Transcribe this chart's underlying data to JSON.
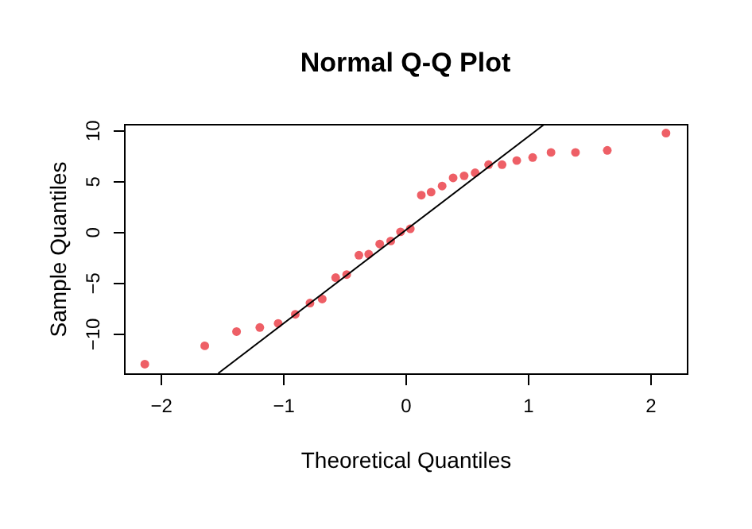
{
  "chart_data": {
    "type": "scatter",
    "title": "Normal Q-Q Plot",
    "xlabel": "Theoretical Quantiles",
    "ylabel": "Sample Quantiles",
    "xlim": [
      -2.3,
      2.3
    ],
    "ylim": [
      -13.9,
      10.6
    ],
    "xticks": [
      -2,
      -1,
      0,
      1,
      2
    ],
    "yticks": [
      -10,
      -5,
      0,
      5,
      10
    ],
    "grid": false,
    "series": [
      {
        "marker": "circle",
        "color": "#ee5f66",
        "x": [
          -2.13,
          -1.64,
          -1.38,
          -1.19,
          -1.04,
          -0.9,
          -0.78,
          -0.68,
          -0.57,
          -0.48,
          -0.38,
          -0.3,
          -0.21,
          -0.12,
          -0.04,
          0.04,
          0.13,
          0.21,
          0.3,
          0.39,
          0.48,
          0.57,
          0.68,
          0.79,
          0.91,
          1.04,
          1.19,
          1.39,
          1.65,
          2.13
        ],
        "values": [
          -13,
          -11.2,
          -9.8,
          -9.4,
          -9,
          -8.1,
          -7,
          -6.6,
          -4.5,
          -4.2,
          -2.3,
          -2.2,
          -1.2,
          -0.9,
          0,
          0.3,
          3.6,
          3.9,
          4.5,
          5.3,
          5.5,
          5.8,
          6.6,
          6.6,
          7,
          7.3,
          7.8,
          7.8,
          8,
          9.7
        ]
      },
      {
        "type": "line",
        "color": "#000000",
        "x": [
          -1.53,
          1.14
        ],
        "values": [
          -13.9,
          10.6
        ]
      }
    ]
  }
}
